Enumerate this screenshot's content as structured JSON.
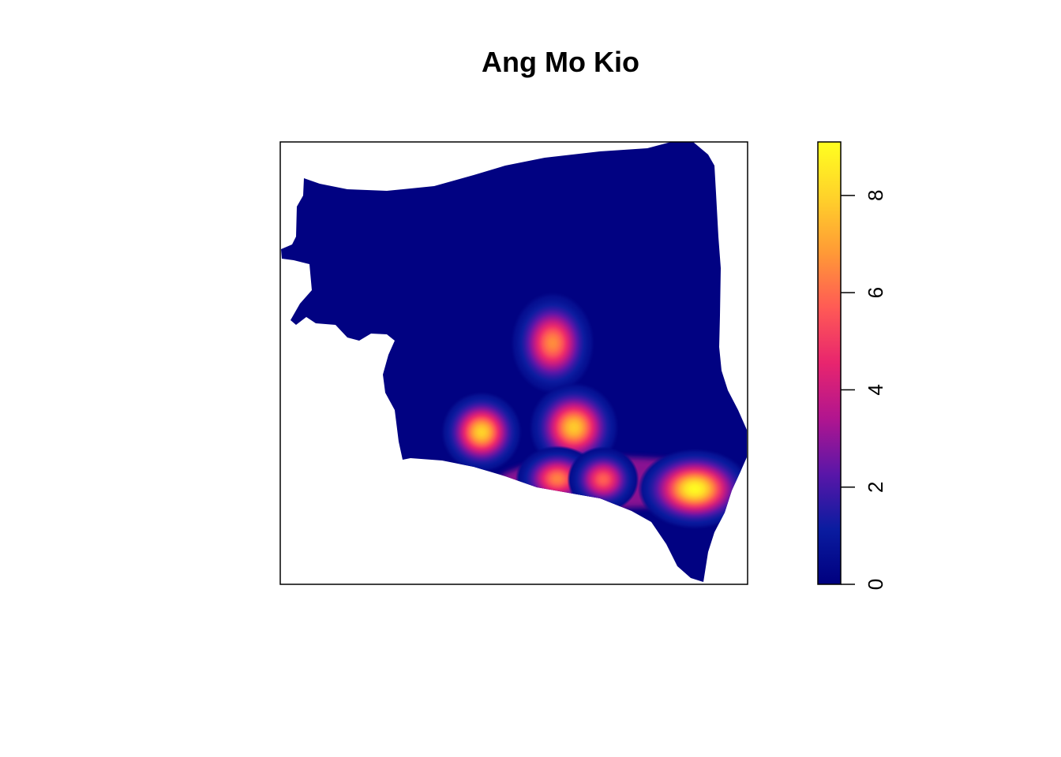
{
  "title": "Ang Mo Kio",
  "chart_data": {
    "type": "heatmap",
    "title": "Ang Mo Kio",
    "xlabel": "",
    "ylabel": "",
    "colorbar": {
      "range": [
        0,
        9.1
      ],
      "ticks": [
        0,
        2,
        4,
        6,
        8
      ],
      "tick_labels": [
        "0",
        "2",
        "4",
        "6",
        "8"
      ],
      "colors": [
        "#00007F",
        "#0A1CA0",
        "#5A16A8",
        "#B1158F",
        "#E8256E",
        "#FF5A55",
        "#FF9A36",
        "#FFD22A",
        "#FFFF20"
      ]
    },
    "hotspots": [
      {
        "label": "north-central",
        "intensity": 6.6
      },
      {
        "label": "west",
        "intensity": 8.0
      },
      {
        "label": "central",
        "intensity": 7.8
      },
      {
        "label": "south-central",
        "intensity": 6.4
      },
      {
        "label": "south",
        "intensity": 5.8
      },
      {
        "label": "south-east",
        "intensity": 9.0
      }
    ],
    "background_intensity": 0.1,
    "legend_position": "right",
    "grid": false
  }
}
